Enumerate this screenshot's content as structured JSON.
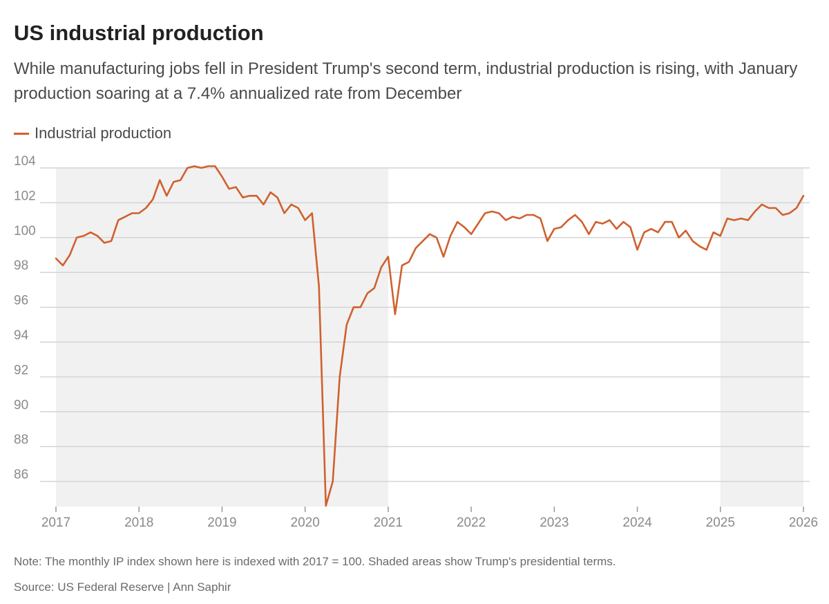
{
  "title": "US industrial production",
  "subtitle": "While manufacturing jobs fell in President Trump's second term, industrial production is rising, with January production soaring at a 7.4% annualized rate from December",
  "legend": {
    "label": "Industrial production",
    "color": "#d0602d"
  },
  "note": "Note: The monthly IP index shown here is indexed with 2017 = 100. Shaded areas show Trump's presidential terms.",
  "source": "Source: US Federal Reserve | Ann Saphir",
  "colors": {
    "line": "#d0602d",
    "shade": "#f1f1f1",
    "grid": "#d4d4d4",
    "tick": "#8a8a8a"
  },
  "chart_data": {
    "type": "line",
    "title": "US industrial production",
    "xlabel": "",
    "ylabel": "",
    "xlim": [
      2017.0,
      2026.0
    ],
    "ylim": [
      84.5,
      104
    ],
    "yticks": [
      "104",
      "102",
      "100",
      "98",
      "96",
      "94",
      "92",
      "90",
      "88",
      "86"
    ],
    "xticks": [
      "2017",
      "2018",
      "2019",
      "2020",
      "2021",
      "2022",
      "2023",
      "2024",
      "2025",
      "2026"
    ],
    "shaded_periods": [
      {
        "label": "Trump first term",
        "start": 2017.0,
        "end": 2021.0
      },
      {
        "label": "Trump second term",
        "start": 2025.0,
        "end": 2026.0
      }
    ],
    "series": [
      {
        "name": "Industrial production",
        "start": 2017.0,
        "step": 0.08333,
        "values": [
          98.8,
          98.4,
          99.0,
          100.0,
          100.1,
          100.3,
          100.1,
          99.7,
          99.8,
          101.0,
          101.2,
          101.4,
          101.4,
          101.7,
          102.2,
          103.3,
          102.4,
          103.2,
          103.3,
          104.0,
          104.1,
          104.0,
          104.1,
          104.1,
          103.5,
          102.8,
          102.9,
          102.3,
          102.4,
          102.4,
          101.9,
          102.6,
          102.3,
          101.4,
          101.9,
          101.7,
          101.0,
          101.4,
          97.2,
          84.6,
          86.0,
          92.0,
          95.0,
          96.0,
          96.0,
          96.8,
          97.1,
          98.3,
          98.9,
          95.6,
          98.4,
          98.6,
          99.4,
          99.8,
          100.2,
          100.0,
          98.9,
          100.1,
          100.9,
          100.6,
          100.2,
          100.8,
          101.4,
          101.5,
          101.4,
          101.0,
          101.2,
          101.1,
          101.3,
          101.3,
          101.1,
          99.8,
          100.5,
          100.6,
          101.0,
          101.3,
          100.9,
          100.2,
          100.9,
          100.8,
          101.0,
          100.5,
          100.9,
          100.6,
          99.3,
          100.3,
          100.5,
          100.3,
          100.9,
          100.9,
          100.0,
          100.4,
          99.8,
          99.5,
          99.3,
          100.3,
          100.1,
          101.1,
          101.0,
          101.1,
          101.0,
          101.5,
          101.9,
          101.7,
          101.7,
          101.3,
          101.4,
          101.7,
          102.4
        ]
      }
    ]
  }
}
